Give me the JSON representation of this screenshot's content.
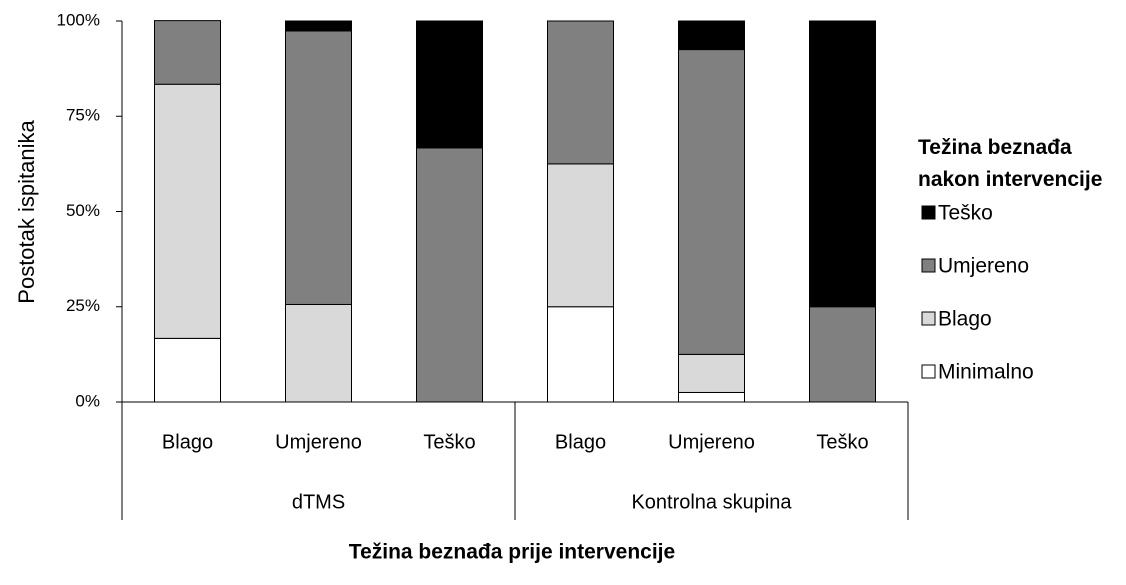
{
  "chart_data": {
    "type": "stacked-bar",
    "y_axis_label": "Postotak ispitanika",
    "x_axis_label": "Težina beznađa prije intervencije",
    "legend_title": "Težina beznađa nakon intervencije",
    "groups": [
      {
        "name": "dTMS",
        "categories": [
          "Blago",
          "Umjereno",
          "Teško"
        ]
      },
      {
        "name": "Kontrolna skupina",
        "categories": [
          "Blago",
          "Umjereno",
          "Teško"
        ]
      }
    ],
    "series": [
      {
        "name": "Minimalno",
        "color": "#ffffff",
        "values": [
          16.7,
          0,
          0,
          25,
          2.5,
          0
        ]
      },
      {
        "name": "Blago",
        "color": "#d9d9d9",
        "values": [
          66.7,
          25.6,
          0,
          37.5,
          10,
          0
        ]
      },
      {
        "name": "Umjereno",
        "color": "#808080",
        "values": [
          16.7,
          71.8,
          66.7,
          37.5,
          80,
          25
        ]
      },
      {
        "name": "Teško",
        "color": "#000000",
        "values": [
          0,
          2.6,
          33.3,
          0,
          7.5,
          75
        ]
      }
    ],
    "ylim": [
      0,
      100
    ],
    "yticks": [
      {
        "value": 0,
        "label": "0%"
      },
      {
        "value": 25,
        "label": "25%"
      },
      {
        "value": 50,
        "label": "50%"
      },
      {
        "value": 75,
        "label": "75%"
      },
      {
        "value": 100,
        "label": "100%"
      }
    ],
    "legend_position": "right"
  }
}
